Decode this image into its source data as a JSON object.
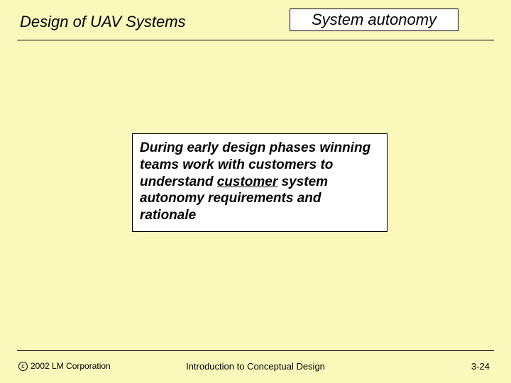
{
  "background_color": "#fbf8bb",
  "header": {
    "left_title": "Design of UAV Systems",
    "right_title": "System autonomy",
    "rule_color": "#000000"
  },
  "body": {
    "text_before": "During early design phases winning teams work with customers to understand ",
    "underlined_word": "customer",
    "text_after": " system autonomy requirements and rationale",
    "box_border_color": "#000000",
    "font_style": "italic",
    "font_weight": "bold",
    "font_size_pt": 14
  },
  "footer": {
    "copyright_symbol": "c",
    "copyright_text": "2002 LM Corporation",
    "center_text": "Introduction to Conceptual Design",
    "page_number": "3-24",
    "rule_color": "#000000"
  }
}
